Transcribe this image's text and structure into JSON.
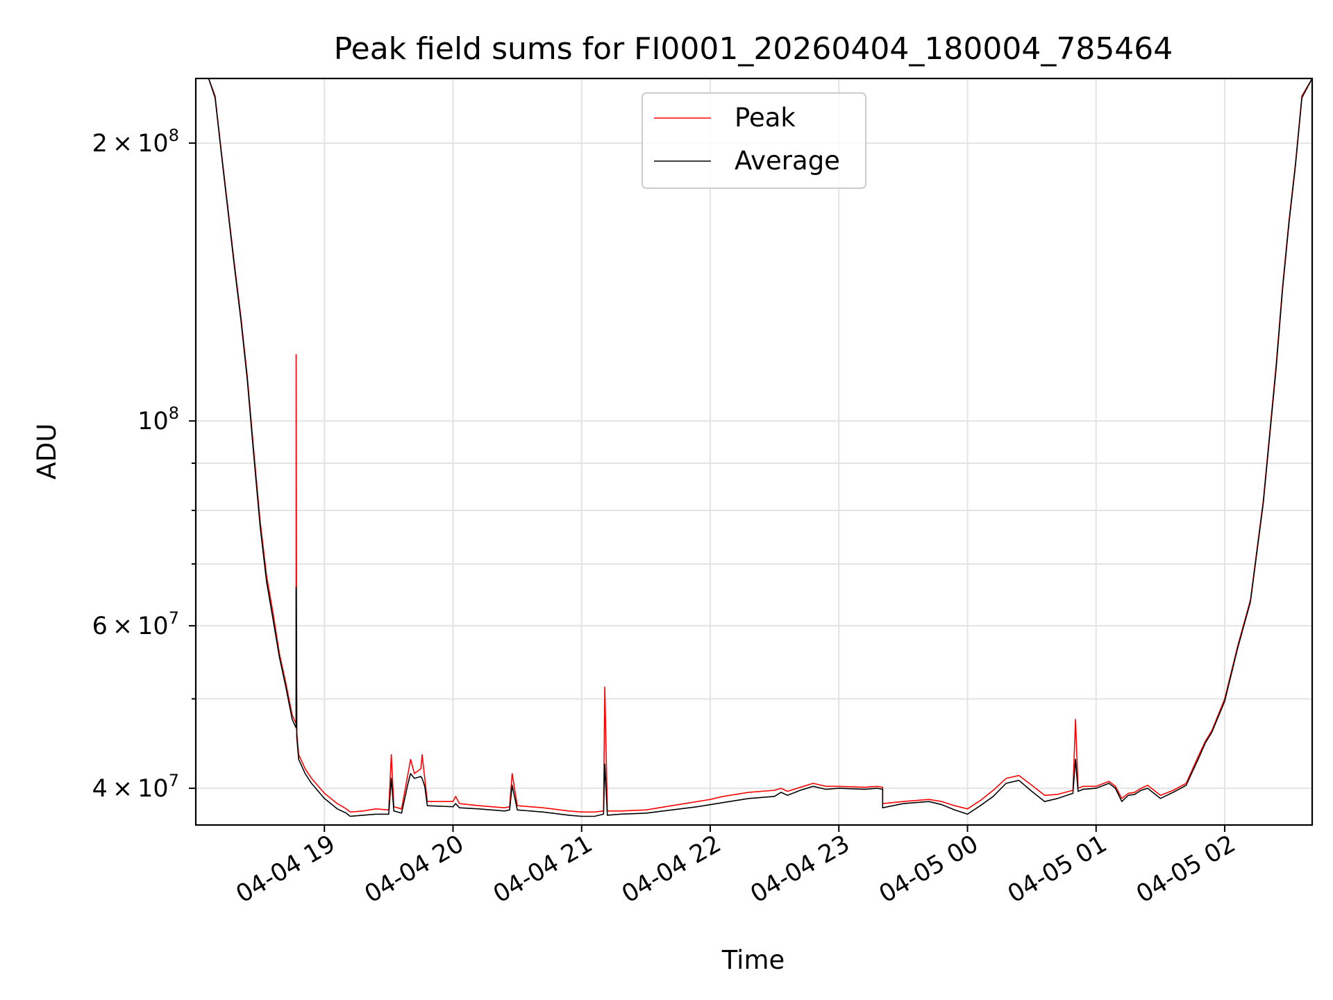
{
  "chart_data": {
    "type": "line",
    "title": "Peak field sums for FI0001_20260404_180004_785464",
    "xlabel": "Time",
    "ylabel": "ADU",
    "yscale": "log",
    "grid": true,
    "legend_position": "top-center",
    "x_unit": "hours since 04-04 18:00",
    "xlim": [
      0.0,
      8.68
    ],
    "ylim": [
      36500000,
      235000000
    ],
    "x_ticks": [
      {
        "value": 1,
        "label": "04-04 19"
      },
      {
        "value": 2,
        "label": "04-04 20"
      },
      {
        "value": 3,
        "label": "04-04 21"
      },
      {
        "value": 4,
        "label": "04-04 22"
      },
      {
        "value": 5,
        "label": "04-04 23"
      },
      {
        "value": 6,
        "label": "04-05 00"
      },
      {
        "value": 7,
        "label": "04-05 01"
      },
      {
        "value": 8,
        "label": "04-05 02"
      }
    ],
    "y_ticks_major": [
      {
        "value": 40000000,
        "base": "4",
        "exp": "7"
      },
      {
        "value": 60000000,
        "base": "6",
        "exp": "7"
      },
      {
        "value": 100000000,
        "base": "",
        "exp": "8"
      },
      {
        "value": 200000000,
        "base": "2",
        "exp": "8"
      }
    ],
    "y_ticks_minor": [
      50000000,
      70000000,
      80000000,
      90000000
    ],
    "series": [
      {
        "name": "Peak",
        "color": "#ff0000",
        "x": [
          0.0,
          0.1,
          0.15,
          0.2,
          0.25,
          0.3,
          0.35,
          0.4,
          0.45,
          0.5,
          0.55,
          0.6,
          0.65,
          0.7,
          0.75,
          0.78,
          0.78,
          0.785,
          0.785,
          0.8,
          0.85,
          0.9,
          1.0,
          1.1,
          1.17,
          1.2,
          1.3,
          1.4,
          1.5,
          1.52,
          1.54,
          1.6,
          1.65,
          1.67,
          1.7,
          1.75,
          1.76,
          1.78,
          1.8,
          2.0,
          2.02,
          2.05,
          2.2,
          2.4,
          2.44,
          2.46,
          2.5,
          2.7,
          2.9,
          3.0,
          3.1,
          3.17,
          3.18,
          3.2,
          3.3,
          3.5,
          3.7,
          3.9,
          4.0,
          4.1,
          4.3,
          4.5,
          4.55,
          4.6,
          4.7,
          4.8,
          4.9,
          5.0,
          5.2,
          5.3,
          5.34,
          5.34,
          5.5,
          5.7,
          5.8,
          5.9,
          6.0,
          6.1,
          6.2,
          6.3,
          6.4,
          6.5,
          6.6,
          6.7,
          6.82,
          6.84,
          6.86,
          6.9,
          7.0,
          7.1,
          7.15,
          7.2,
          7.25,
          7.3,
          7.35,
          7.4,
          7.45,
          7.5,
          7.6,
          7.7,
          7.8,
          7.85,
          7.9,
          8.0,
          8.1,
          8.2,
          8.3,
          8.4,
          8.45,
          8.5,
          8.55,
          8.6,
          8.68
        ],
        "y": [
          235000000,
          235000000,
          225000000,
          195000000,
          170000000,
          148000000,
          130000000,
          112000000,
          93000000,
          78000000,
          68000000,
          62000000,
          56000000,
          52000000,
          48000000,
          47000000,
          118000000,
          49000000,
          46000000,
          43500000,
          42000000,
          41000000,
          39500000,
          38500000,
          38000000,
          37700000,
          37800000,
          38000000,
          37900000,
          43500000,
          38200000,
          38000000,
          41500000,
          43000000,
          41500000,
          42000000,
          43500000,
          41000000,
          38700000,
          38700000,
          39200000,
          38500000,
          38300000,
          38100000,
          38200000,
          41500000,
          38300000,
          38100000,
          37800000,
          37700000,
          37700000,
          37800000,
          51500000,
          37800000,
          37800000,
          37900000,
          38300000,
          38700000,
          38900000,
          39200000,
          39600000,
          39800000,
          40000000,
          39700000,
          40100000,
          40500000,
          40200000,
          40200000,
          40100000,
          40200000,
          40100000,
          38500000,
          38700000,
          38900000,
          38700000,
          38300000,
          38000000,
          38800000,
          39800000,
          41000000,
          41300000,
          40300000,
          39300000,
          39400000,
          39800000,
          47500000,
          40000000,
          40200000,
          40200000,
          40700000,
          40200000,
          39000000,
          39500000,
          39600000,
          40000000,
          40300000,
          39800000,
          39300000,
          39800000,
          40500000,
          43500000,
          45000000,
          46200000,
          50000000,
          57000000,
          64000000,
          82000000,
          115000000,
          140000000,
          165000000,
          190000000,
          225000000,
          235000000
        ]
      },
      {
        "name": "Average",
        "color": "#000000",
        "x": [
          0.0,
          0.1,
          0.15,
          0.2,
          0.25,
          0.3,
          0.35,
          0.4,
          0.45,
          0.5,
          0.55,
          0.6,
          0.65,
          0.7,
          0.75,
          0.78,
          0.78,
          0.785,
          0.785,
          0.8,
          0.85,
          0.9,
          1.0,
          1.1,
          1.17,
          1.2,
          1.3,
          1.4,
          1.5,
          1.52,
          1.54,
          1.6,
          1.65,
          1.67,
          1.7,
          1.75,
          1.76,
          1.78,
          1.8,
          2.0,
          2.02,
          2.05,
          2.2,
          2.4,
          2.44,
          2.46,
          2.5,
          2.7,
          2.9,
          3.0,
          3.1,
          3.17,
          3.18,
          3.2,
          3.3,
          3.5,
          3.7,
          3.9,
          4.0,
          4.1,
          4.3,
          4.5,
          4.55,
          4.6,
          4.7,
          4.8,
          4.9,
          5.0,
          5.2,
          5.3,
          5.34,
          5.34,
          5.5,
          5.7,
          5.8,
          5.9,
          6.0,
          6.1,
          6.2,
          6.3,
          6.4,
          6.5,
          6.6,
          6.7,
          6.82,
          6.84,
          6.86,
          6.9,
          7.0,
          7.1,
          7.15,
          7.2,
          7.25,
          7.3,
          7.35,
          7.4,
          7.45,
          7.5,
          7.6,
          7.7,
          7.8,
          7.85,
          7.9,
          8.0,
          8.1,
          8.2,
          8.3,
          8.4,
          8.45,
          8.5,
          8.55,
          8.6,
          8.68
        ],
        "y": [
          235000000,
          235000000,
          224000000,
          194000000,
          169000000,
          147000000,
          129000000,
          111000000,
          92000000,
          77000000,
          67000000,
          61000000,
          55500000,
          51500000,
          47500000,
          46500000,
          66000000,
          48000000,
          45500000,
          43000000,
          41500000,
          40500000,
          39000000,
          38000000,
          37600000,
          37300000,
          37400000,
          37500000,
          37500000,
          41000000,
          37800000,
          37600000,
          40500000,
          41500000,
          41000000,
          41200000,
          41000000,
          40200000,
          38300000,
          38200000,
          38500000,
          38100000,
          38000000,
          37800000,
          37900000,
          40300000,
          37900000,
          37700000,
          37400000,
          37300000,
          37300000,
          37500000,
          42500000,
          37400000,
          37500000,
          37600000,
          37900000,
          38200000,
          38400000,
          38600000,
          39000000,
          39200000,
          39600000,
          39300000,
          39800000,
          40200000,
          39900000,
          40000000,
          39900000,
          40000000,
          39900000,
          38100000,
          38500000,
          38700000,
          38400000,
          37900000,
          37500000,
          38300000,
          39200000,
          40500000,
          40800000,
          39700000,
          38700000,
          39000000,
          39500000,
          43000000,
          39700000,
          39900000,
          40000000,
          40500000,
          40000000,
          38700000,
          39300000,
          39400000,
          39800000,
          40000000,
          39500000,
          39000000,
          39600000,
          40300000,
          43200000,
          44800000,
          46000000,
          49700000,
          56700000,
          63700000,
          81500000,
          114000000,
          139000000,
          164000000,
          189000000,
          224000000,
          235000000
        ]
      }
    ]
  }
}
